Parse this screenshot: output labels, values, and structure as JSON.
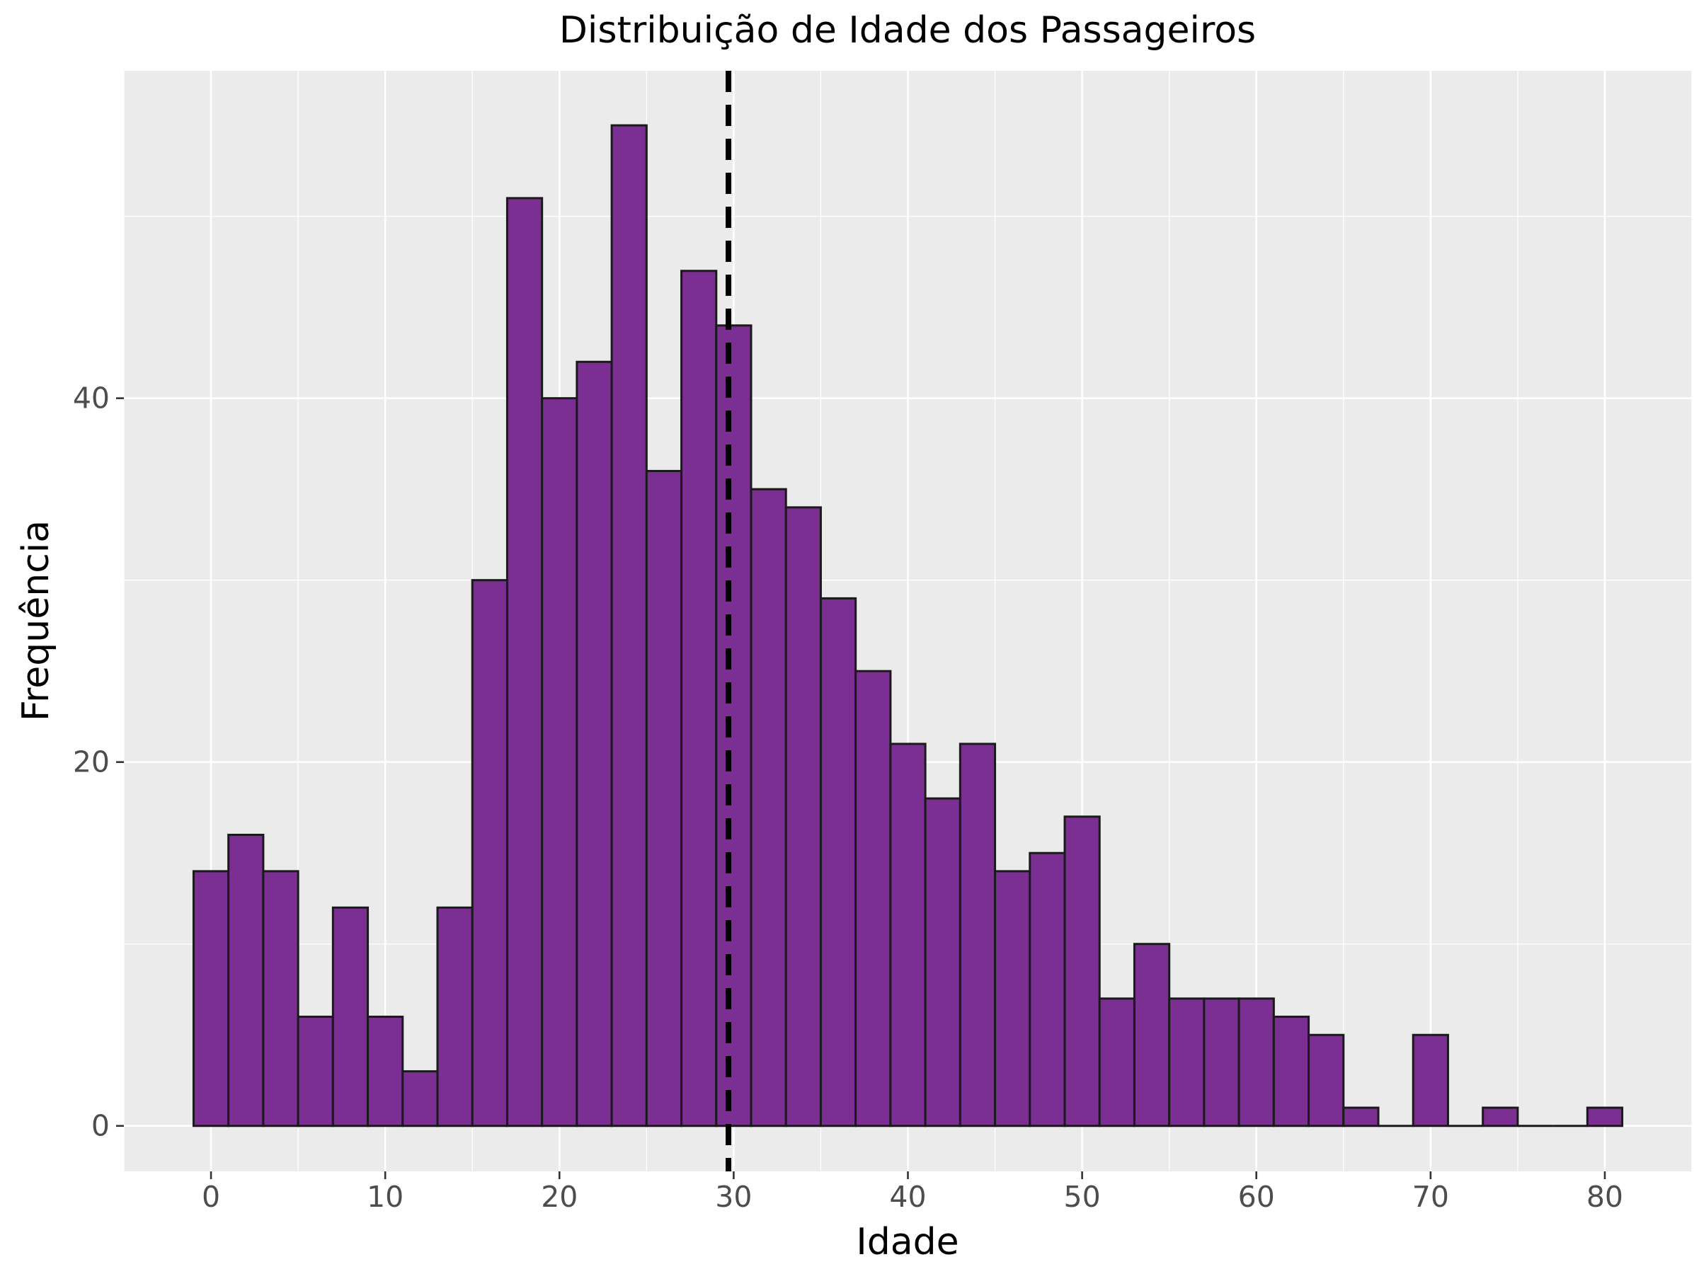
{
  "chart_data": {
    "type": "bar",
    "title": "Distribuição de Idade dos Passageiros",
    "xlabel": "Idade",
    "ylabel": "Frequência",
    "bin_width": 2,
    "bins": [
      {
        "start": -1,
        "end": 1,
        "count": 14
      },
      {
        "start": 1,
        "end": 3,
        "count": 16
      },
      {
        "start": 3,
        "end": 5,
        "count": 14
      },
      {
        "start": 5,
        "end": 7,
        "count": 6
      },
      {
        "start": 7,
        "end": 9,
        "count": 12
      },
      {
        "start": 9,
        "end": 11,
        "count": 6
      },
      {
        "start": 11,
        "end": 13,
        "count": 3
      },
      {
        "start": 13,
        "end": 15,
        "count": 12
      },
      {
        "start": 15,
        "end": 17,
        "count": 30
      },
      {
        "start": 17,
        "end": 19,
        "count": 51
      },
      {
        "start": 19,
        "end": 21,
        "count": 40
      },
      {
        "start": 21,
        "end": 23,
        "count": 42
      },
      {
        "start": 23,
        "end": 25,
        "count": 55
      },
      {
        "start": 25,
        "end": 27,
        "count": 36
      },
      {
        "start": 27,
        "end": 29,
        "count": 47
      },
      {
        "start": 29,
        "end": 31,
        "count": 44
      },
      {
        "start": 31,
        "end": 33,
        "count": 35
      },
      {
        "start": 33,
        "end": 35,
        "count": 34
      },
      {
        "start": 35,
        "end": 37,
        "count": 29
      },
      {
        "start": 37,
        "end": 39,
        "count": 25
      },
      {
        "start": 39,
        "end": 41,
        "count": 21
      },
      {
        "start": 41,
        "end": 43,
        "count": 18
      },
      {
        "start": 43,
        "end": 45,
        "count": 21
      },
      {
        "start": 45,
        "end": 47,
        "count": 14
      },
      {
        "start": 47,
        "end": 49,
        "count": 15
      },
      {
        "start": 49,
        "end": 51,
        "count": 17
      },
      {
        "start": 51,
        "end": 53,
        "count": 7
      },
      {
        "start": 53,
        "end": 55,
        "count": 10
      },
      {
        "start": 55,
        "end": 57,
        "count": 7
      },
      {
        "start": 57,
        "end": 59,
        "count": 7
      },
      {
        "start": 59,
        "end": 61,
        "count": 7
      },
      {
        "start": 61,
        "end": 63,
        "count": 6
      },
      {
        "start": 63,
        "end": 65,
        "count": 5
      },
      {
        "start": 65,
        "end": 67,
        "count": 1
      },
      {
        "start": 67,
        "end": 69,
        "count": 0
      },
      {
        "start": 69,
        "end": 71,
        "count": 5
      },
      {
        "start": 71,
        "end": 73,
        "count": 0
      },
      {
        "start": 73,
        "end": 75,
        "count": 1
      },
      {
        "start": 75,
        "end": 77,
        "count": 0
      },
      {
        "start": 77,
        "end": 79,
        "count": 0
      },
      {
        "start": 79,
        "end": 81,
        "count": 1
      }
    ],
    "mean_line": 29.7,
    "xlim": [
      -5,
      85
    ],
    "ylim": [
      -2.5,
      58
    ],
    "xticks": [
      0,
      10,
      20,
      30,
      40,
      50,
      60,
      70,
      80
    ],
    "yticks": [
      0,
      20,
      40
    ],
    "grid": true,
    "legend": "none",
    "colors": {
      "bar_fill": "#7B2F93",
      "bar_edge": "#1a1a1a",
      "panel_bg": "#EBEBEB",
      "grid": "#FFFFFF",
      "mean_line": "#000000"
    }
  }
}
